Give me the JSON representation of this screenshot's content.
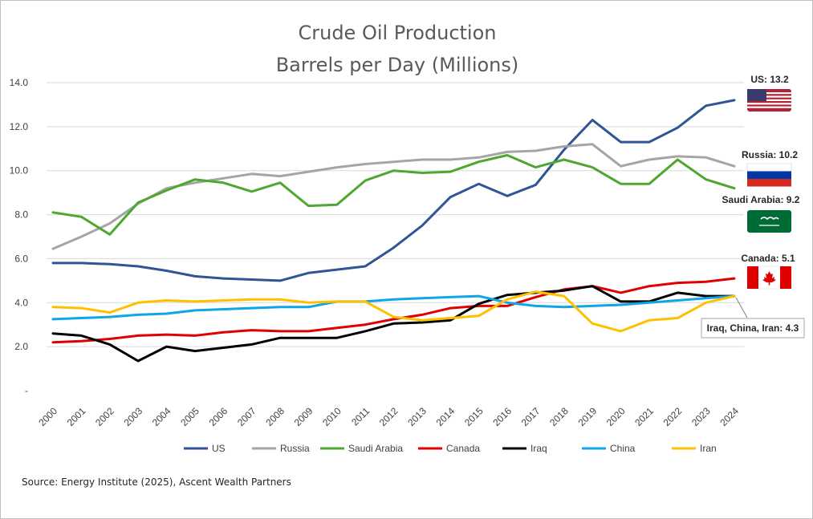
{
  "chart_data": {
    "type": "line",
    "title": "Crude Oil Production",
    "subtitle": "Barrels per Day (Millions)",
    "xlabel": "",
    "ylabel": "",
    "ylim": [
      0,
      14
    ],
    "yticks": [
      "-",
      "2.0",
      "4.0",
      "6.0",
      "8.0",
      "10.0",
      "12.0",
      "14.0"
    ],
    "grid": "horizontal",
    "legend_position": "bottom",
    "x": [
      "2000",
      "2001",
      "2002",
      "2003",
      "2004",
      "2005",
      "2006",
      "2007",
      "2008",
      "2009",
      "2010",
      "2011",
      "2012",
      "2013",
      "2014",
      "2015",
      "2016",
      "2017",
      "2018",
      "2019",
      "2020",
      "2021",
      "2022",
      "2023",
      "2024"
    ],
    "series": [
      {
        "name": "US",
        "color": "#2f5597",
        "values": [
          5.8,
          5.8,
          5.75,
          5.65,
          5.45,
          5.2,
          5.1,
          5.05,
          5.0,
          5.35,
          5.5,
          5.65,
          6.5,
          7.5,
          8.8,
          9.4,
          8.85,
          9.35,
          10.95,
          12.3,
          11.3,
          11.3,
          11.95,
          12.95,
          13.2
        ]
      },
      {
        "name": "Russia",
        "color": "#a5a5a5",
        "values": [
          6.45,
          7.0,
          7.6,
          8.5,
          9.2,
          9.45,
          9.65,
          9.85,
          9.75,
          9.95,
          10.15,
          10.3,
          10.4,
          10.5,
          10.5,
          10.6,
          10.85,
          10.9,
          11.1,
          11.2,
          10.2,
          10.5,
          10.65,
          10.6,
          10.2
        ]
      },
      {
        "name": "Saudi Arabia",
        "color": "#4ea72e",
        "values": [
          8.1,
          7.9,
          7.1,
          8.55,
          9.1,
          9.6,
          9.45,
          9.05,
          9.45,
          8.4,
          8.45,
          9.55,
          10.0,
          9.9,
          9.95,
          10.4,
          10.7,
          10.15,
          10.5,
          10.15,
          9.4,
          9.4,
          10.5,
          9.6,
          9.2
        ]
      },
      {
        "name": "Canada",
        "color": "#e00000",
        "values": [
          2.2,
          2.25,
          2.35,
          2.5,
          2.55,
          2.5,
          2.65,
          2.75,
          2.7,
          2.7,
          2.85,
          3.0,
          3.25,
          3.45,
          3.75,
          3.85,
          3.85,
          4.25,
          4.6,
          4.75,
          4.45,
          4.75,
          4.9,
          4.95,
          5.1
        ]
      },
      {
        "name": "Iraq",
        "color": "#000000",
        "values": [
          2.6,
          2.5,
          2.1,
          1.35,
          2.0,
          1.8,
          1.95,
          2.1,
          2.4,
          2.4,
          2.4,
          2.7,
          3.05,
          3.1,
          3.2,
          3.95,
          4.35,
          4.45,
          4.55,
          4.75,
          4.05,
          4.05,
          4.45,
          4.3,
          4.3
        ]
      },
      {
        "name": "China",
        "color": "#0ea5e9",
        "values": [
          3.25,
          3.3,
          3.35,
          3.45,
          3.5,
          3.65,
          3.7,
          3.75,
          3.8,
          3.8,
          4.05,
          4.05,
          4.15,
          4.2,
          4.25,
          4.3,
          4.0,
          3.85,
          3.8,
          3.85,
          3.9,
          4.0,
          4.1,
          4.2,
          4.3
        ]
      },
      {
        "name": "Iran",
        "color": "#ffc000",
        "values": [
          3.8,
          3.75,
          3.55,
          4.0,
          4.1,
          4.05,
          4.1,
          4.15,
          4.15,
          4.0,
          4.05,
          4.05,
          3.35,
          3.2,
          3.3,
          3.4,
          4.15,
          4.5,
          4.3,
          3.05,
          2.7,
          3.2,
          3.3,
          4.0,
          4.3
        ]
      }
    ],
    "annotations": [
      {
        "text": "US: 13.2",
        "flag": "us-flag"
      },
      {
        "text": "Russia: 10.2",
        "flag": "russia-flag"
      },
      {
        "text": "Saudi Arabia: 9.2",
        "flag": "saudi-arabia-flag"
      },
      {
        "text": "Canada: 5.1",
        "flag": "canada-flag"
      },
      {
        "text": "Iraq, China, Iran: 4.3",
        "flag": ""
      }
    ],
    "source": "Source: Energy Institute (2025), Ascent Wealth Partners"
  }
}
